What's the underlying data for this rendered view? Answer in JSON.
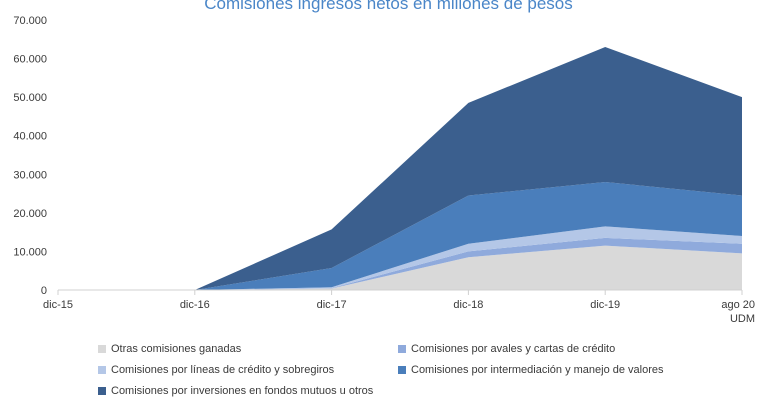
{
  "title": "Comisiones ingresos netos en millones de pesos",
  "chart_data": {
    "type": "area",
    "stacked": true,
    "x": [
      "dic-15",
      "dic-16",
      "dic-17",
      "dic-18",
      "dic-19",
      "ago 20"
    ],
    "x_sublabels": [
      "",
      "",
      "",
      "",
      "",
      "UDM"
    ],
    "ylim": [
      0,
      70000
    ],
    "yticks": [
      0,
      10000,
      20000,
      30000,
      40000,
      50000,
      60000,
      70000
    ],
    "ytick_labels": [
      "0",
      "10.000",
      "20.000",
      "30.000",
      "40.000",
      "50.000",
      "60.000",
      "70.000"
    ],
    "legend_position": "bottom",
    "series": [
      {
        "name": "Otras comisiones ganadas",
        "color": "#d9d9d9",
        "values": [
          0,
          0,
          400,
          8500,
          11500,
          9500
        ]
      },
      {
        "name": "Comisiones por avales y cartas de crédito",
        "color": "#8faadc",
        "values": [
          0,
          0,
          100,
          1500,
          2000,
          2500
        ]
      },
      {
        "name": "Comisiones por líneas de crédito y sobregiros",
        "color": "#b4c7e7",
        "values": [
          0,
          0,
          200,
          2000,
          3000,
          2000
        ]
      },
      {
        "name": "Comisiones por intermediación y manejo de valores",
        "color": "#4a7ebb",
        "values": [
          0,
          0,
          5000,
          12500,
          11500,
          10500
        ]
      },
      {
        "name": "Comisiones por inversiones en fondos mutuos u otros",
        "color": "#3b5f8e",
        "values": [
          0,
          0,
          10000,
          24000,
          35000,
          25500
        ]
      }
    ]
  }
}
